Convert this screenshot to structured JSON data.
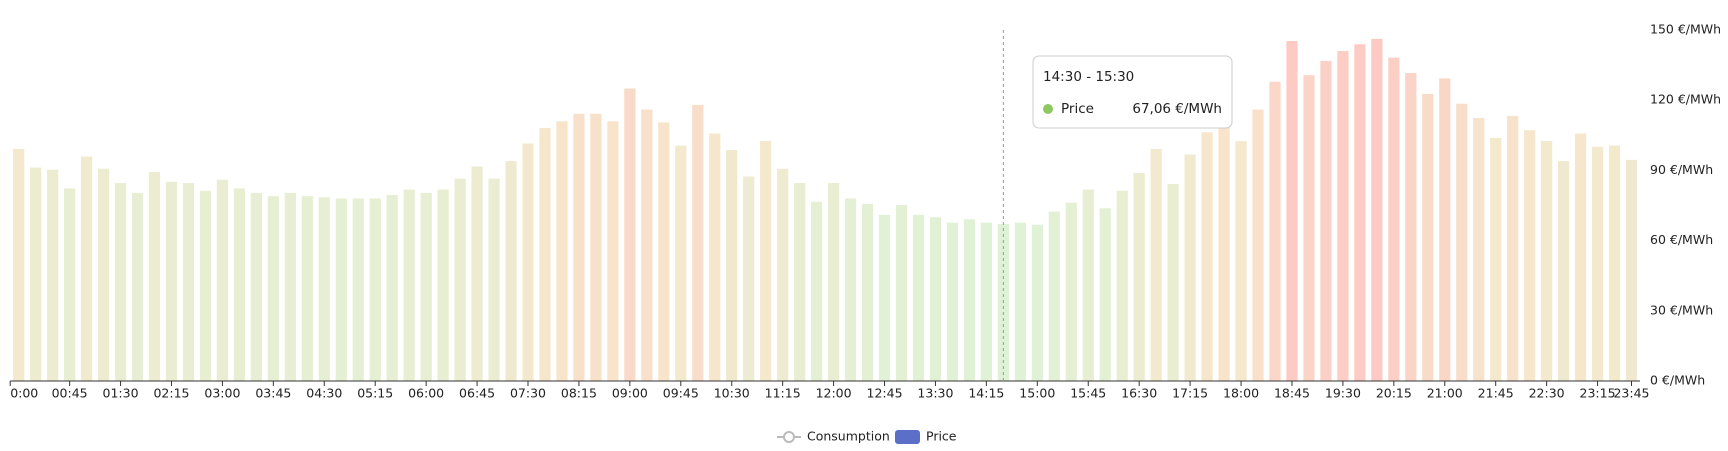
{
  "chart_data": {
    "type": "bar",
    "categories": [
      "0:00",
      null,
      null,
      "00:45",
      null,
      null,
      "01:30",
      null,
      null,
      "02:15",
      null,
      null,
      "03:00",
      null,
      null,
      "03:45",
      null,
      null,
      "04:30",
      null,
      null,
      "05:15",
      null,
      null,
      "06:00",
      null,
      null,
      "06:45",
      null,
      null,
      "07:30",
      null,
      null,
      "08:15",
      null,
      null,
      "09:00",
      null,
      null,
      "09:45",
      null,
      null,
      "10:30",
      null,
      null,
      "11:15",
      null,
      null,
      "12:00",
      null,
      null,
      "12:45",
      null,
      null,
      "13:30",
      null,
      null,
      "14:15",
      null,
      null,
      "15:00",
      null,
      null,
      "15:45",
      null,
      null,
      "16:30",
      null,
      null,
      "17:15",
      null,
      null,
      "18:00",
      null,
      null,
      "18:45",
      null,
      null,
      "19:30",
      null,
      null,
      "20:15",
      null,
      null,
      "21:00",
      null,
      null,
      "21:45",
      null,
      null,
      "22:30",
      null,
      null,
      "23:15",
      null,
      "23:45"
    ],
    "series": [
      {
        "name": "Price",
        "color": "#5b6fc9",
        "values": [
          99.2,
          91.2,
          90.3,
          82.3,
          95.9,
          90.7,
          84.6,
          80.4,
          89.3,
          85.1,
          84.6,
          81.3,
          86.0,
          82.3,
          80.4,
          79.0,
          80.4,
          79.0,
          78.5,
          78.0,
          78.0,
          78.0,
          79.5,
          81.8,
          80.4,
          81.8,
          86.5,
          91.7,
          86.5,
          94.0,
          101.5,
          108.1,
          111.0,
          114.2,
          114.2,
          111.0,
          125.0,
          116.0,
          110.5,
          100.6,
          118.0,
          105.8,
          98.7,
          87.4,
          102.5,
          90.7,
          84.6,
          76.6,
          84.6,
          78.0,
          75.7,
          71.0,
          75.2,
          71.0,
          70.0,
          67.7,
          69.1,
          67.7,
          67.06,
          67.7,
          66.8,
          72.4,
          76.2,
          81.8,
          73.8,
          81.3,
          88.9,
          99.2,
          84.2,
          96.8,
          106.3,
          110.0,
          102.5,
          116.0,
          127.9,
          145.3,
          130.7,
          136.8,
          141.0,
          143.9,
          146.2,
          138.2,
          131.6,
          122.7,
          129.3,
          118.5,
          112.4,
          103.9,
          113.3,
          107.2,
          102.5,
          94.0,
          105.8,
          100.1,
          100.6,
          94.5
        ]
      }
    ],
    "legend": [
      {
        "name": "Consumption",
        "hidden": true
      },
      {
        "name": "Price",
        "color": "#5b6fc9"
      }
    ],
    "color_scale": [
      "#dff2d6",
      "#f6e7cc",
      "#fdc9c4"
    ],
    "ylim": [
      0,
      150
    ],
    "yticks": [
      {
        "value": 0,
        "label": "0 €/MWh"
      },
      {
        "value": 30,
        "label": "30 €/MWh"
      },
      {
        "value": 60,
        "label": "60 €/MWh"
      },
      {
        "value": 90,
        "label": "90 €/MWh"
      },
      {
        "value": 120,
        "label": "120 €/MWh"
      },
      {
        "value": 150,
        "label": "150 €/MWh"
      }
    ],
    "tooltip": {
      "title": "14:30 - 15:30",
      "index": 58,
      "series": "Price",
      "color": "#8dc95f",
      "value_label": "67,06 €/MWh"
    }
  }
}
